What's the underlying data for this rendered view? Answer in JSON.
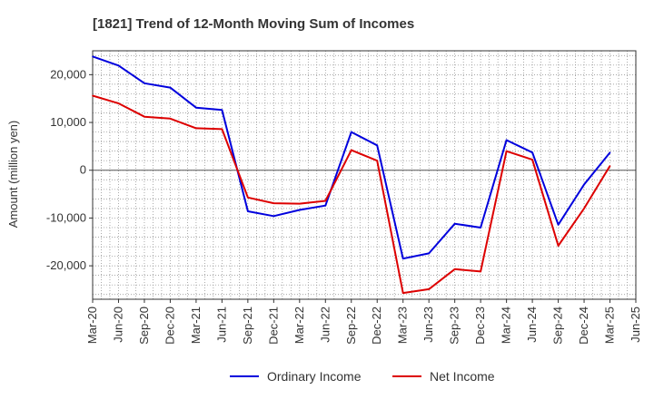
{
  "chart_data": {
    "type": "line",
    "title": "[1821]  Trend of 12-Month Moving Sum of Incomes",
    "ylabel": "Amount (million yen)",
    "xlabel": "",
    "ylim": [
      -27000,
      25000
    ],
    "y_ticks": [
      -20000,
      -10000,
      0,
      10000,
      20000
    ],
    "y_tick_labels": [
      "-20,000",
      "-10,000",
      "0",
      "10,000",
      "20,000"
    ],
    "x_ticks": [
      "Mar-20",
      "Jun-20",
      "Sep-20",
      "Dec-20",
      "Mar-21",
      "Jun-21",
      "Sep-21",
      "Dec-21",
      "Mar-22",
      "Jun-22",
      "Sep-22",
      "Dec-22",
      "Mar-23",
      "Jun-23",
      "Sep-23",
      "Dec-23",
      "Mar-24",
      "Jun-24",
      "Sep-24",
      "Dec-24",
      "Mar-25",
      "Jun-25"
    ],
    "grid": true,
    "legend_position": "bottom",
    "series": [
      {
        "name": "Ordinary Income",
        "color": "#0000dd",
        "values": [
          23800,
          21900,
          18200,
          17300,
          13100,
          12600,
          -8600,
          -9600,
          -8300,
          -7400,
          8000,
          5200,
          -18500,
          -17400,
          -11200,
          -12000,
          6300,
          3700,
          -11400,
          -3000,
          3700
        ]
      },
      {
        "name": "Net Income",
        "color": "#dd0000",
        "values": [
          15600,
          14000,
          11200,
          10800,
          8800,
          8600,
          -5700,
          -6900,
          -7000,
          -6400,
          4200,
          2000,
          -25700,
          -24900,
          -20700,
          -21200,
          4000,
          2200,
          -15800,
          -8000,
          900
        ]
      }
    ]
  }
}
